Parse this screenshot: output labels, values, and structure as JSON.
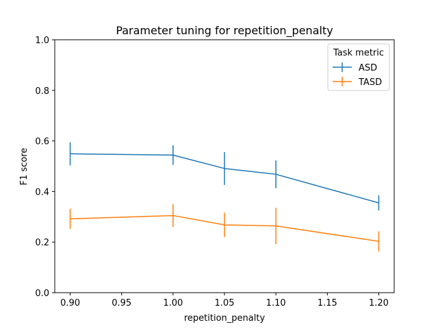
{
  "chart_data": {
    "type": "line",
    "title": "Parameter tuning for repetition_penalty",
    "xlabel": "repetition_penalty",
    "ylabel": "F1 score",
    "xlim": [
      0.885,
      1.215
    ],
    "ylim": [
      0.0,
      1.0
    ],
    "x_ticks": [
      "0.90",
      "0.95",
      "1.00",
      "1.05",
      "1.10",
      "1.15",
      "1.20"
    ],
    "y_ticks": [
      "0.0",
      "0.2",
      "0.4",
      "0.6",
      "0.8",
      "1.0"
    ],
    "x": [
      0.9,
      1.0,
      1.05,
      1.1,
      1.2
    ],
    "series": [
      {
        "name": "ASD",
        "color": "#1f77b4",
        "values": [
          0.549,
          0.544,
          0.491,
          0.468,
          0.355
        ],
        "errors": [
          0.046,
          0.039,
          0.065,
          0.055,
          0.03
        ]
      },
      {
        "name": "TASD",
        "color": "#ff7f0e",
        "values": [
          0.292,
          0.305,
          0.268,
          0.264,
          0.203
        ],
        "errors": [
          0.04,
          0.045,
          0.048,
          0.072,
          0.04
        ]
      }
    ],
    "legend": {
      "title": "Task metric",
      "location": "upper right"
    },
    "grid": false
  }
}
